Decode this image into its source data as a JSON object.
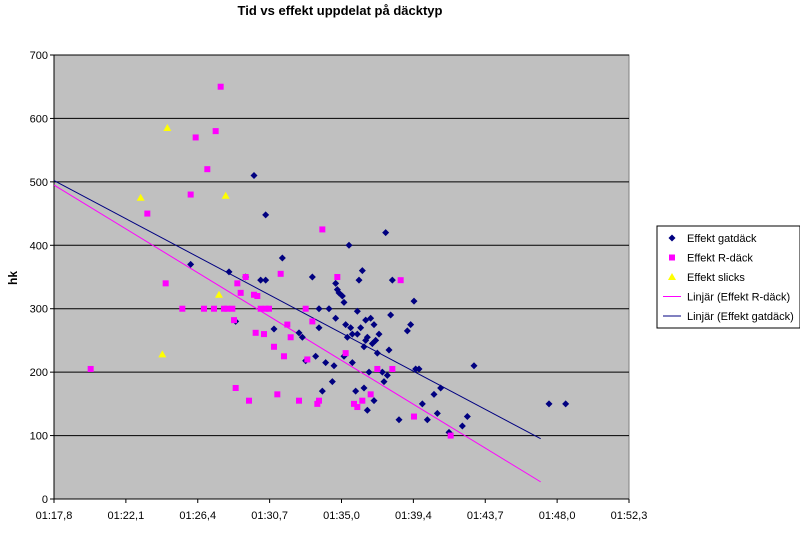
{
  "chart_data": {
    "type": "scatter",
    "title": "Tid vs effekt uppdelat på däcktyp",
    "xlabel": "",
    "ylabel": "hk",
    "xlim_seconds": [
      77.8,
      112.3
    ],
    "ylim": [
      0,
      700
    ],
    "x_ticks": [
      "01:17,8",
      "01:22,1",
      "01:26,4",
      "01:30,7",
      "01:35,0",
      "01:39,4",
      "01:43,7",
      "01:48,0",
      "01:52,3"
    ],
    "y_ticks": [
      0,
      100,
      200,
      300,
      400,
      500,
      600,
      700
    ],
    "grid": "horizontal",
    "legend_position": "right",
    "colors": {
      "plot_bg": "#c0c0c0",
      "gatdack": "#000080",
      "rdack": "#ff00ff",
      "slicks": "#ffff00",
      "trend_r": "#ff00ff",
      "trend_gat": "#000080"
    },
    "series": [
      {
        "name": "Effekt gatdäck",
        "marker": "diamond",
        "points": [
          [
            86.0,
            370
          ],
          [
            88.3,
            358
          ],
          [
            88.7,
            280
          ],
          [
            89.3,
            350
          ],
          [
            89.8,
            510
          ],
          [
            90.2,
            345
          ],
          [
            90.5,
            345
          ],
          [
            90.5,
            448
          ],
          [
            91.0,
            268
          ],
          [
            91.5,
            380
          ],
          [
            92.5,
            262
          ],
          [
            92.7,
            255
          ],
          [
            92.9,
            218
          ],
          [
            93.3,
            350
          ],
          [
            93.5,
            225
          ],
          [
            93.7,
            270
          ],
          [
            93.7,
            300
          ],
          [
            93.9,
            170
          ],
          [
            94.1,
            215
          ],
          [
            94.3,
            300
          ],
          [
            94.5,
            185
          ],
          [
            94.6,
            210
          ],
          [
            94.7,
            285
          ],
          [
            94.7,
            340
          ],
          [
            94.8,
            330
          ],
          [
            94.9,
            325
          ],
          [
            95.1,
            320
          ],
          [
            95.2,
            310
          ],
          [
            95.2,
            225
          ],
          [
            95.3,
            275
          ],
          [
            95.4,
            255
          ],
          [
            95.5,
            400
          ],
          [
            95.6,
            270
          ],
          [
            95.7,
            215
          ],
          [
            95.7,
            260
          ],
          [
            95.9,
            170
          ],
          [
            96.0,
            260
          ],
          [
            96.0,
            296
          ],
          [
            96.1,
            345
          ],
          [
            96.2,
            270
          ],
          [
            96.3,
            360
          ],
          [
            96.4,
            240
          ],
          [
            96.4,
            175
          ],
          [
            96.5,
            282
          ],
          [
            96.5,
            250
          ],
          [
            96.6,
            140
          ],
          [
            96.6,
            255
          ],
          [
            96.7,
            200
          ],
          [
            96.8,
            285
          ],
          [
            96.9,
            245
          ],
          [
            97.0,
            155
          ],
          [
            97.0,
            275
          ],
          [
            97.1,
            250
          ],
          [
            97.2,
            230
          ],
          [
            97.3,
            260
          ],
          [
            97.5,
            200
          ],
          [
            97.6,
            185
          ],
          [
            97.7,
            420
          ],
          [
            97.8,
            195
          ],
          [
            97.9,
            235
          ],
          [
            98.0,
            290
          ],
          [
            98.1,
            345
          ],
          [
            98.5,
            125
          ],
          [
            99.0,
            265
          ],
          [
            99.2,
            275
          ],
          [
            99.4,
            312
          ],
          [
            99.5,
            205
          ],
          [
            99.7,
            205
          ],
          [
            99.9,
            150
          ],
          [
            100.2,
            125
          ],
          [
            100.6,
            165
          ],
          [
            100.8,
            135
          ],
          [
            101.0,
            175
          ],
          [
            101.5,
            105
          ],
          [
            102.3,
            115
          ],
          [
            102.6,
            130
          ],
          [
            103.0,
            210
          ],
          [
            107.5,
            150
          ],
          [
            108.5,
            150
          ]
        ]
      },
      {
        "name": "Effekt R-däck",
        "marker": "square",
        "points": [
          [
            80.0,
            205
          ],
          [
            83.4,
            450
          ],
          [
            84.5,
            340
          ],
          [
            85.5,
            300
          ],
          [
            86.0,
            480
          ],
          [
            86.3,
            570
          ],
          [
            86.8,
            300
          ],
          [
            87.0,
            520
          ],
          [
            87.4,
            300
          ],
          [
            87.5,
            580
          ],
          [
            87.8,
            650
          ],
          [
            88.0,
            300
          ],
          [
            88.2,
            300
          ],
          [
            88.5,
            300
          ],
          [
            88.6,
            282
          ],
          [
            88.7,
            175
          ],
          [
            88.8,
            340
          ],
          [
            89.0,
            325
          ],
          [
            89.3,
            350
          ],
          [
            89.5,
            155
          ],
          [
            89.8,
            322
          ],
          [
            89.9,
            262
          ],
          [
            90.0,
            320
          ],
          [
            90.2,
            300
          ],
          [
            90.4,
            260
          ],
          [
            90.5,
            300
          ],
          [
            90.7,
            300
          ],
          [
            91.0,
            240
          ],
          [
            91.2,
            165
          ],
          [
            91.4,
            355
          ],
          [
            91.6,
            225
          ],
          [
            91.8,
            275
          ],
          [
            92.0,
            255
          ],
          [
            92.5,
            155
          ],
          [
            92.9,
            300
          ],
          [
            93.0,
            220
          ],
          [
            93.3,
            280
          ],
          [
            93.6,
            150
          ],
          [
            93.7,
            155
          ],
          [
            93.9,
            425
          ],
          [
            94.8,
            350
          ],
          [
            95.3,
            230
          ],
          [
            95.8,
            150
          ],
          [
            96.0,
            145
          ],
          [
            96.3,
            155
          ],
          [
            96.8,
            165
          ],
          [
            97.2,
            205
          ],
          [
            98.1,
            205
          ],
          [
            98.6,
            345
          ],
          [
            99.4,
            130
          ],
          [
            101.6,
            100
          ]
        ]
      },
      {
        "name": "Effekt slicks",
        "marker": "triangle",
        "points": [
          [
            83.0,
            475
          ],
          [
            84.3,
            228
          ],
          [
            84.6,
            585
          ],
          [
            87.7,
            322
          ],
          [
            88.1,
            478
          ]
        ]
      },
      {
        "name": "Linjär (Effekt R-däck)",
        "type": "line",
        "points": [
          [
            77.8,
            495
          ],
          [
            107.0,
            27
          ]
        ]
      },
      {
        "name": "Linjär (Effekt gatdäck)",
        "type": "line",
        "points": [
          [
            77.8,
            502
          ],
          [
            107.0,
            95
          ]
        ]
      }
    ]
  }
}
